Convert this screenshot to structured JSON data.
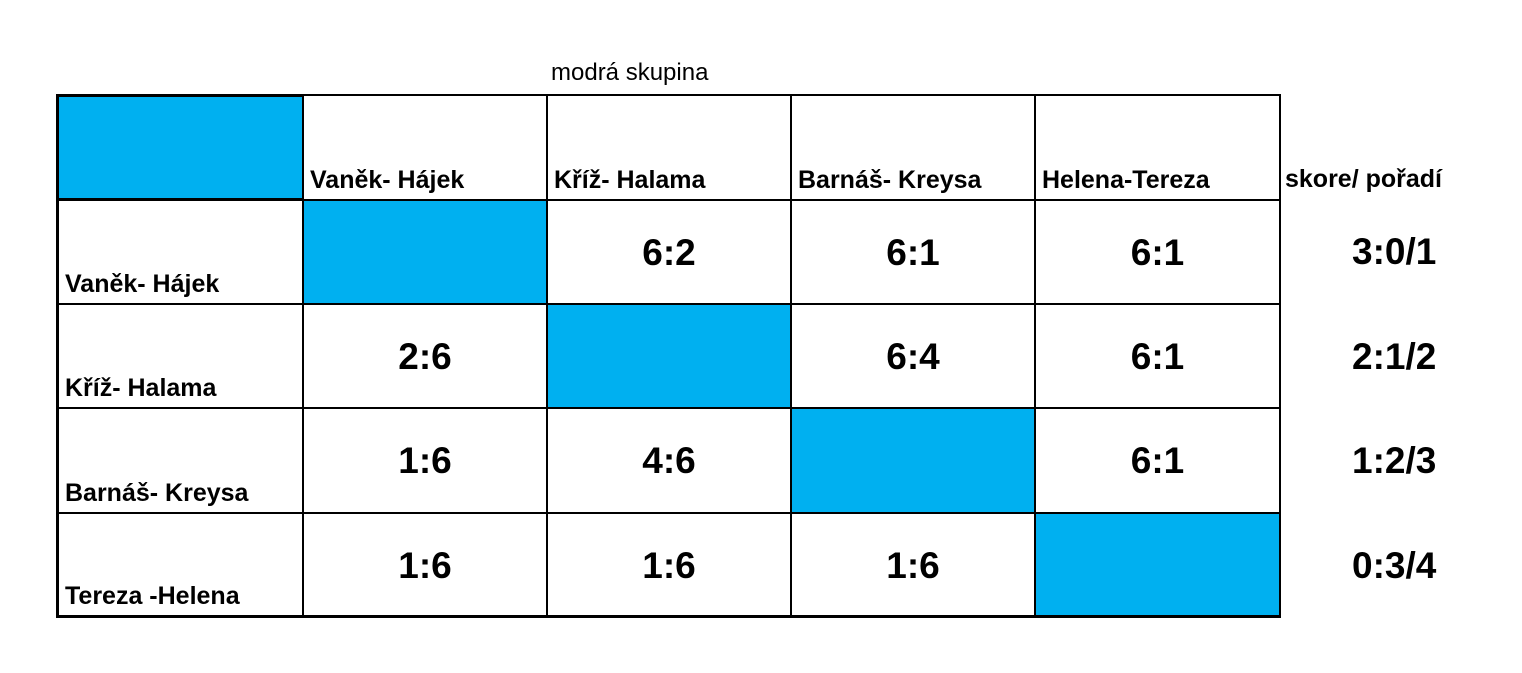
{
  "caption": "modrá skupina",
  "accent_color": "#00b0f0",
  "column_headers": [
    "Vaněk- Hájek",
    "Kříž- Halama",
    "Barnáš- Kreysa",
    "Helena-Tereza"
  ],
  "score_header": "skore/ pořadí",
  "rows": [
    {
      "label": "Vaněk- Hájek",
      "results": [
        "",
        "6:2",
        "6:1",
        "6:1"
      ],
      "standing": "3:0/1"
    },
    {
      "label": "Kříž- Halama",
      "results": [
        "2:6",
        "",
        "6:4",
        "6:1"
      ],
      "standing": "2:1/2"
    },
    {
      "label": "Barnáš- Kreysa",
      "results": [
        "1:6",
        "4:6",
        "",
        "6:1"
      ],
      "standing": "1:2/3"
    },
    {
      "label": "Tereza -Helena",
      "results": [
        "1:6",
        "1:6",
        "1:6",
        ""
      ],
      "standing": "0:3/4"
    }
  ]
}
